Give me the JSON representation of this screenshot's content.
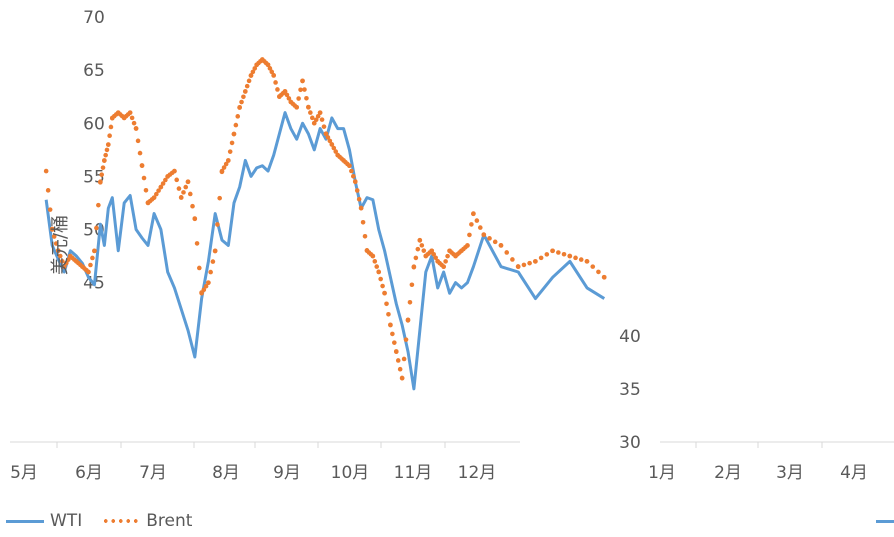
{
  "chart_data": {
    "type": "line",
    "title": "",
    "ylabel": "美元/桶",
    "xlabel": "",
    "ylim": [
      30,
      70
    ],
    "yticks": [
      30,
      35,
      40,
      45,
      50,
      55,
      60,
      65,
      70
    ],
    "months": [
      "5月",
      "6月",
      "7月",
      "8月",
      "9月",
      "10月",
      "11月",
      "12月",
      "1月",
      "2月",
      "3月",
      "4月"
    ],
    "legend_position": "bottom-left",
    "grid": false,
    "series": [
      {
        "name": "WTI",
        "style": "solid",
        "color": "#5B9BD5",
        "x": [
          2.55,
          2.7,
          2.85,
          3.0,
          3.15,
          3.3,
          3.45,
          3.6,
          3.75,
          3.9,
          4.0,
          4.1,
          4.2,
          4.35,
          4.5,
          4.65,
          4.8,
          4.95,
          5.1,
          5.25,
          5.4,
          5.55,
          5.7,
          5.85,
          6.0,
          6.15,
          6.3,
          6.45,
          6.6,
          6.75,
          6.9,
          7.05,
          7.2,
          7.35,
          7.5,
          7.65,
          7.8,
          7.95,
          8.1,
          8.25,
          8.4,
          8.55,
          8.7,
          8.85,
          9.0,
          9.15,
          9.3,
          9.45,
          9.6,
          9.75,
          9.9,
          10.05,
          10.2,
          10.35,
          10.5,
          10.65,
          10.8,
          10.95,
          11.1,
          11.25,
          11.4,
          11.55,
          11.7,
          11.85,
          12.0,
          12.15,
          12.3,
          12.45,
          12.6,
          12.75,
          12.9,
          13.05,
          13.2,
          13.35,
          13.5,
          13.65,
          13.8,
          13.95,
          14.1,
          14.25,
          14.4
        ],
        "y": [
          52.8,
          48.5,
          47.2,
          46.0,
          48.0,
          47.5,
          46.8,
          45.5,
          44.8,
          50.5,
          48.5,
          52.0,
          53.0,
          48.0,
          52.5,
          53.2,
          50.0,
          49.2,
          48.5,
          51.5,
          50.0,
          46.0,
          44.5,
          42.5,
          40.5,
          38.0,
          43.5,
          47.0,
          51.5,
          49.0,
          48.5,
          52.5,
          54.0,
          56.5,
          55.0,
          55.8,
          56.0,
          55.5,
          57.0,
          59.0,
          61.0,
          59.5,
          58.5,
          60.0,
          59.0,
          57.5,
          59.5,
          58.5,
          60.5,
          59.5,
          59.5,
          57.5,
          54.5,
          52.0,
          53.0,
          52.8,
          50.0,
          48.0,
          45.5,
          43.0,
          41.0,
          38.5,
          35.0,
          40.5,
          46.0,
          47.5,
          44.5,
          46.0,
          44.0,
          45.0,
          44.5,
          45.0,
          46.5,
          49.5,
          46.5,
          46.0,
          43.5,
          45.5,
          47.0,
          44.5,
          43.5
        ]
      },
      {
        "name": "Brent",
        "style": "dotted",
        "color": "#ED7D31",
        "x": [
          2.55,
          2.7,
          2.85,
          3.0,
          3.15,
          3.3,
          3.45,
          3.6,
          3.75,
          3.9,
          4.0,
          4.1,
          4.2,
          4.35,
          4.5,
          4.65,
          4.8,
          4.95,
          5.1,
          5.25,
          5.4,
          5.55,
          5.7,
          5.85,
          6.0,
          6.15,
          6.3,
          6.45,
          6.6,
          6.75,
          6.9,
          7.05,
          7.2,
          7.35,
          7.5,
          7.65,
          7.8,
          7.95,
          8.1,
          8.25,
          8.4,
          8.55,
          8.7,
          8.85,
          9.0,
          9.15,
          9.3,
          9.45,
          9.6,
          9.75,
          9.9,
          10.05,
          10.2,
          10.35,
          10.5,
          10.65,
          10.8,
          10.95,
          11.1,
          11.25,
          11.4,
          11.55,
          11.7,
          11.85,
          12.0,
          12.15,
          12.3,
          12.45,
          12.6,
          12.75,
          12.9,
          13.05,
          13.2,
          13.35,
          13.5,
          13.65,
          13.8,
          13.95,
          14.1,
          14.25,
          14.4
        ],
        "y": [
          55.5,
          50.0,
          48.0,
          46.5,
          47.5,
          47.0,
          46.5,
          46.0,
          48.0,
          54.5,
          56.5,
          58.0,
          60.5,
          61.0,
          60.5,
          61.0,
          59.5,
          56.0,
          52.5,
          53.0,
          54.0,
          55.0,
          55.5,
          53.0,
          54.5,
          51.0,
          44.0,
          45.0,
          48.0,
          55.5,
          56.5,
          59.0,
          61.5,
          63.0,
          64.5,
          65.5,
          66.0,
          65.5,
          64.5,
          62.5,
          63.0,
          62.0,
          61.5,
          64.0,
          61.5,
          60.0,
          61.0,
          59.0,
          58.0,
          57.0,
          56.5,
          56.0,
          54.5,
          52.0,
          48.0,
          47.5,
          46.0,
          44.0,
          41.0,
          38.5,
          36.0,
          41.5,
          46.5,
          49.0,
          47.5,
          48.0,
          47.0,
          46.5,
          48.0,
          47.5,
          48.0,
          48.5,
          51.5,
          49.5,
          48.5,
          46.5,
          47.0,
          48.0,
          47.5,
          47.0,
          45.5
        ]
      }
    ]
  }
}
